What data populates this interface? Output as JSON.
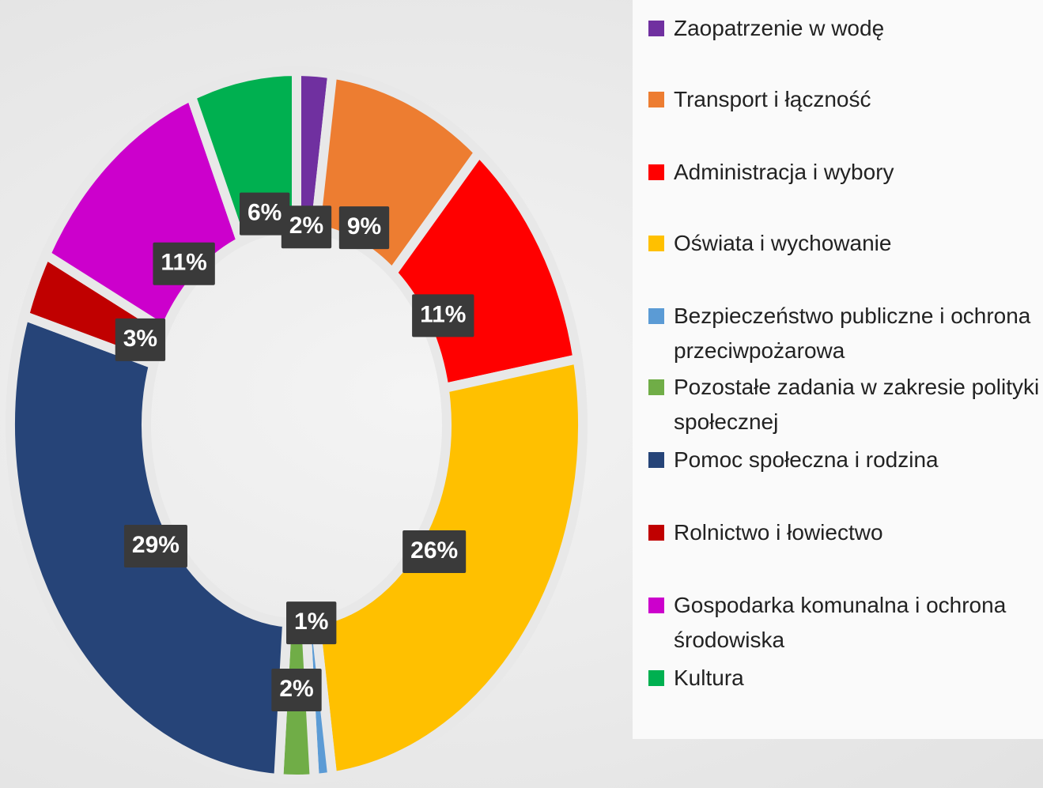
{
  "chart_data": {
    "type": "donut",
    "categories": [
      "Zaopatrzenie w wodę",
      "Transport i łączność",
      "Administracja i wybory",
      "Oświata i wychowanie",
      "Bezpieczeństwo publiczne i ochrona przeciwpożarowa",
      "Pozostałe zadania w zakresie polityki społecznej",
      "Pomoc społeczna i rodzina",
      "Rolnictwo i łowiectwo",
      "Gospodarka komunalna i ochrona środowiska",
      "Kultura"
    ],
    "values": [
      2,
      9,
      11,
      26,
      1,
      2,
      29,
      3,
      11,
      6
    ],
    "value_labels": [
      "2%",
      "9%",
      "11%",
      "26%",
      "1%",
      "2%",
      "29%",
      "3%",
      "11%",
      "6%"
    ],
    "colors": [
      "#7030a0",
      "#ed7d31",
      "#ff0000",
      "#ffc000",
      "#5b9bd5",
      "#70ad47",
      "#264478",
      "#c00000",
      "#cc00cc",
      "#00b050"
    ],
    "legend": "right"
  }
}
